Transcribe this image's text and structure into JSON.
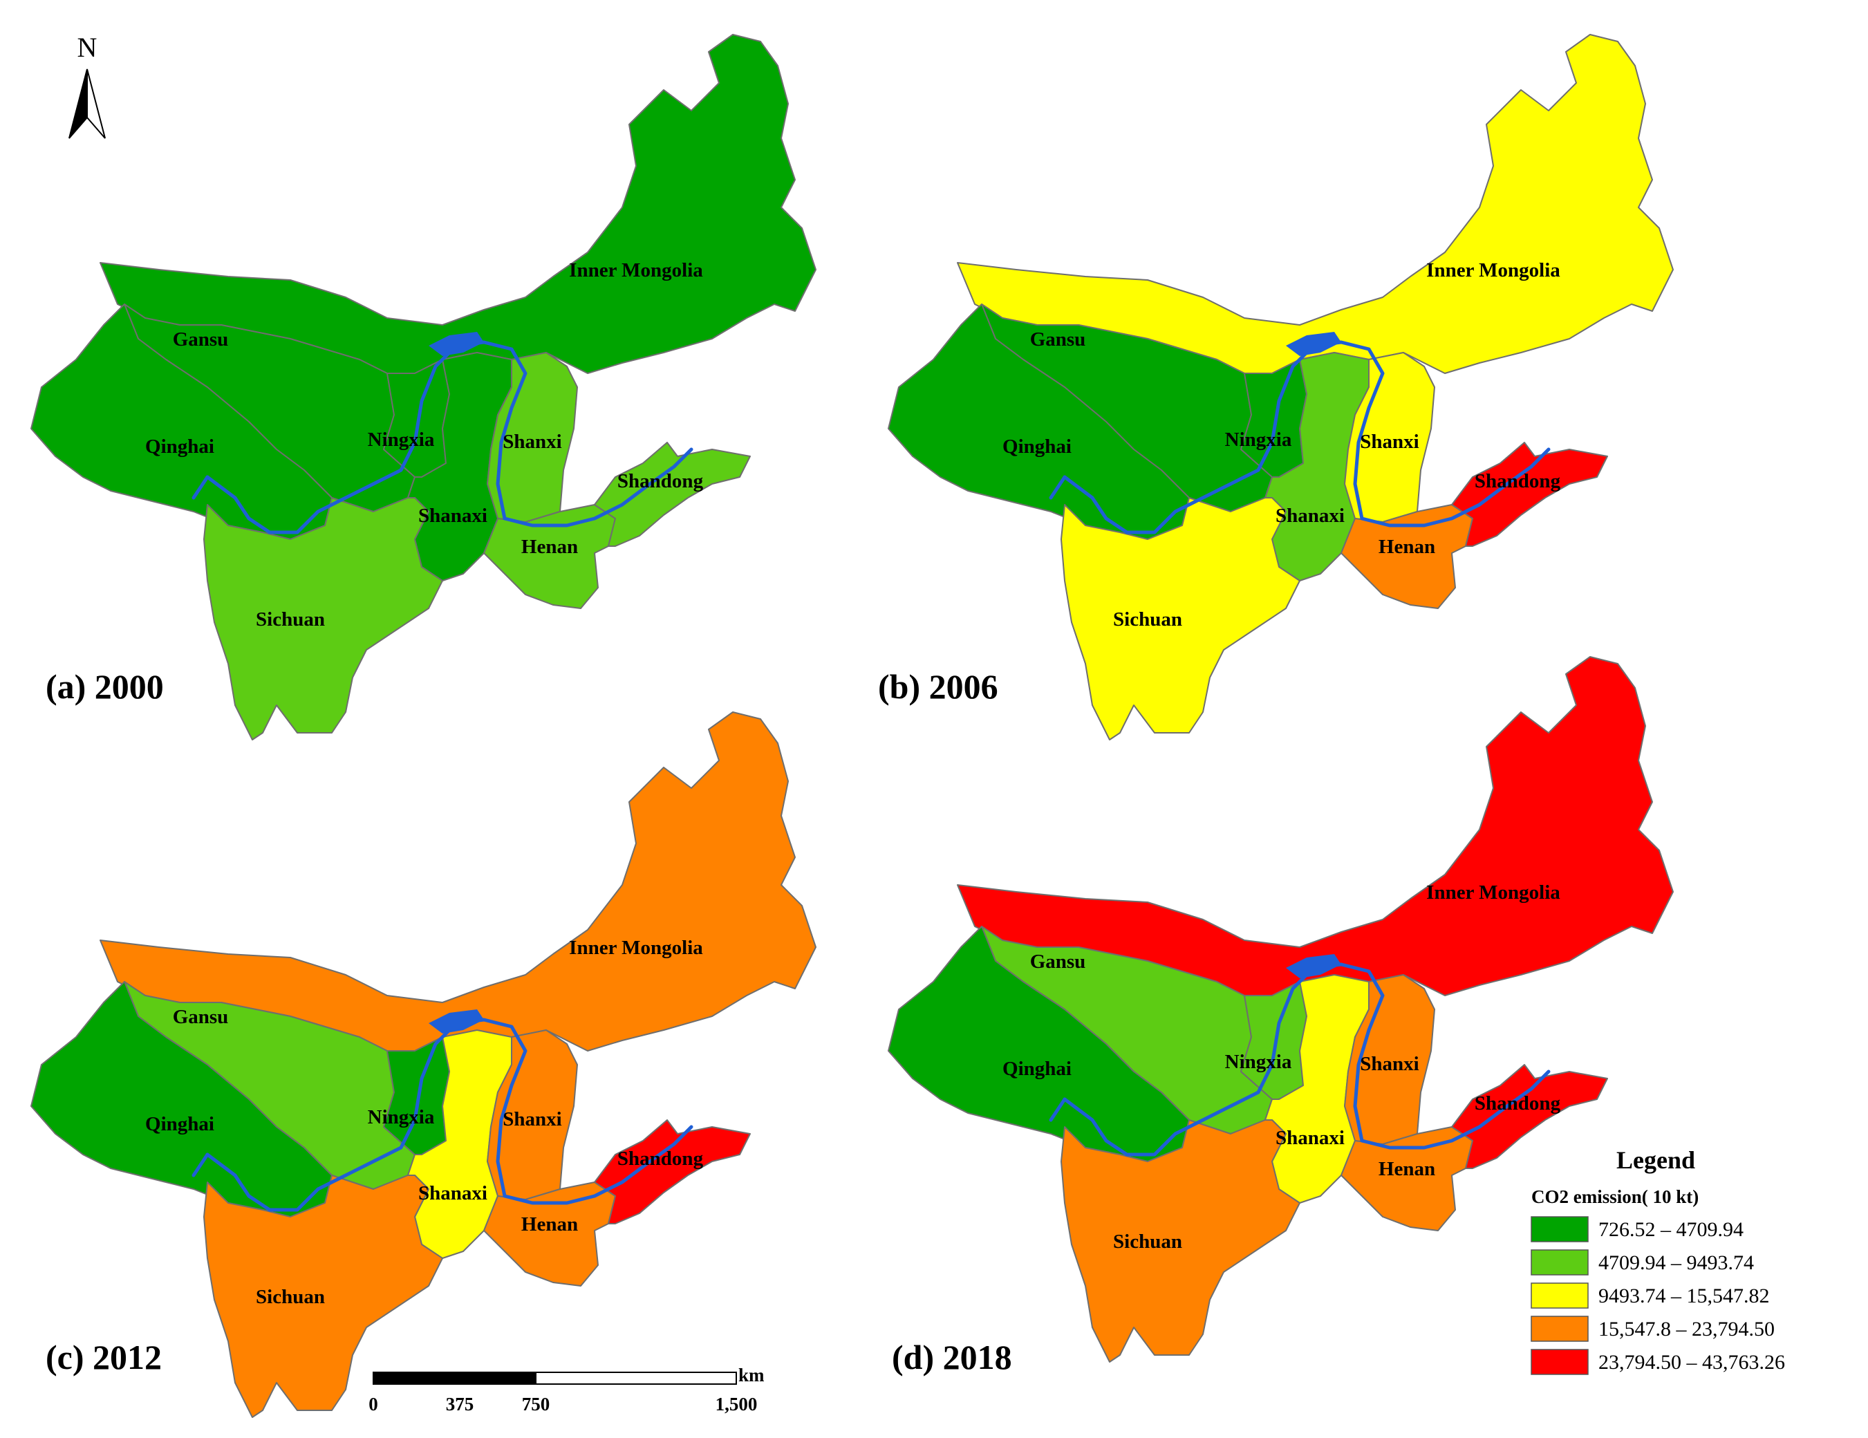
{
  "colors": {
    "c1": "#00a400",
    "c2": "#5dcc14",
    "c3": "#ffff00",
    "c4": "#ff8200",
    "c5": "#ff0000",
    "river": "#1f5fd6"
  },
  "north_label": "N",
  "provinces": {
    "gansu": "Gansu",
    "qinghai": "Qinghai",
    "ningxia": "Ningxia",
    "inner_mongolia": "Inner Mongolia",
    "shanxi": "Shanxi",
    "shanaxi": "Shanaxi",
    "henan": "Henan",
    "shandong": "Shandong",
    "sichuan": "Sichuan"
  },
  "panels": [
    {
      "title": "(a) 2000",
      "classes": {
        "qinghai": 1,
        "gansu": 1,
        "ningxia": 1,
        "inner_mongolia": 1,
        "shanxi": 2,
        "shanaxi": 1,
        "henan": 2,
        "shandong": 2,
        "sichuan": 2
      }
    },
    {
      "title": "(b) 2006",
      "classes": {
        "qinghai": 1,
        "gansu": 1,
        "ningxia": 1,
        "inner_mongolia": 3,
        "shanxi": 3,
        "shanaxi": 2,
        "henan": 4,
        "shandong": 5,
        "sichuan": 3
      }
    },
    {
      "title": "(c) 2012",
      "classes": {
        "qinghai": 1,
        "gansu": 2,
        "ningxia": 1,
        "inner_mongolia": 4,
        "shanxi": 4,
        "shanaxi": 3,
        "henan": 4,
        "shandong": 5,
        "sichuan": 4
      }
    },
    {
      "title": "(d) 2018",
      "classes": {
        "qinghai": 1,
        "gansu": 2,
        "ningxia": 2,
        "inner_mongolia": 5,
        "shanxi": 4,
        "shanaxi": 3,
        "henan": 4,
        "shandong": 5,
        "sichuan": 4
      }
    }
  ],
  "legend": {
    "title": "Legend",
    "subtitle": "CO2 emission( 10 kt)",
    "items": [
      {
        "label": "726.52 – 4709.94",
        "color": "#00a400"
      },
      {
        "label": "4709.94 – 9493.74",
        "color": "#5dcc14"
      },
      {
        "label": "9493.74 – 15,547.82",
        "color": "#ffff00"
      },
      {
        "label": "15,547.8 – 23,794.50",
        "color": "#ff8200"
      },
      {
        "label": "23,794.50 – 43,763.26",
        "color": "#ff0000"
      }
    ]
  },
  "scale": {
    "unit": "km",
    "ticks": [
      "0",
      "375",
      "750",
      "1,500"
    ]
  }
}
